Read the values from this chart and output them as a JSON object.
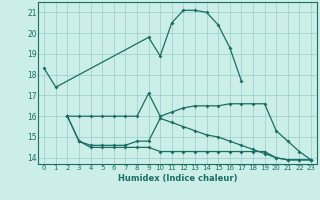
{
  "title": "",
  "xlabel": "Humidex (Indice chaleur)",
  "bg_color": "#cceee8",
  "grid_color": "#99cccc",
  "line_color": "#1a6e64",
  "xlim": [
    -0.5,
    23.5
  ],
  "ylim": [
    13.7,
    21.5
  ],
  "yticks": [
    14,
    15,
    16,
    17,
    18,
    19,
    20,
    21
  ],
  "xticks": [
    0,
    1,
    2,
    3,
    4,
    5,
    6,
    7,
    8,
    9,
    10,
    11,
    12,
    13,
    14,
    15,
    16,
    17,
    18,
    19,
    20,
    21,
    22,
    23
  ],
  "series": [
    {
      "x": [
        0,
        1,
        9,
        10,
        11,
        12,
        13,
        14,
        15,
        16,
        17
      ],
      "y": [
        18.3,
        17.4,
        19.8,
        18.9,
        20.5,
        21.1,
        21.1,
        21.0,
        20.4,
        19.3,
        17.7
      ]
    },
    {
      "x": [
        2,
        3,
        4,
        5,
        6,
        7,
        8,
        9,
        10,
        11,
        12,
        13,
        14,
        15,
        16,
        17,
        18,
        19,
        20,
        21,
        22,
        23
      ],
      "y": [
        16.0,
        16.0,
        16.0,
        16.0,
        16.0,
        16.0,
        16.0,
        17.1,
        16.0,
        16.2,
        16.4,
        16.5,
        16.5,
        16.5,
        16.6,
        16.6,
        16.6,
        16.6,
        15.3,
        14.8,
        14.3,
        13.9
      ]
    },
    {
      "x": [
        2,
        3,
        4,
        5,
        6,
        7,
        8,
        9,
        10,
        11,
        12,
        13,
        14,
        15,
        16,
        17,
        18,
        19,
        20,
        21,
        22,
        23
      ],
      "y": [
        16.0,
        14.8,
        14.6,
        14.6,
        14.6,
        14.6,
        14.8,
        14.8,
        15.9,
        15.7,
        15.5,
        15.3,
        15.1,
        15.0,
        14.8,
        14.6,
        14.4,
        14.2,
        14.0,
        13.9,
        13.9,
        13.9
      ]
    },
    {
      "x": [
        2,
        3,
        4,
        5,
        6,
        7,
        8,
        9,
        10,
        11,
        12,
        13,
        14,
        15,
        16,
        17,
        18,
        19,
        20,
        21,
        22,
        23
      ],
      "y": [
        16.0,
        14.8,
        14.5,
        14.5,
        14.5,
        14.5,
        14.5,
        14.5,
        14.3,
        14.3,
        14.3,
        14.3,
        14.3,
        14.3,
        14.3,
        14.3,
        14.3,
        14.3,
        14.0,
        13.9,
        13.9,
        13.9
      ]
    }
  ]
}
